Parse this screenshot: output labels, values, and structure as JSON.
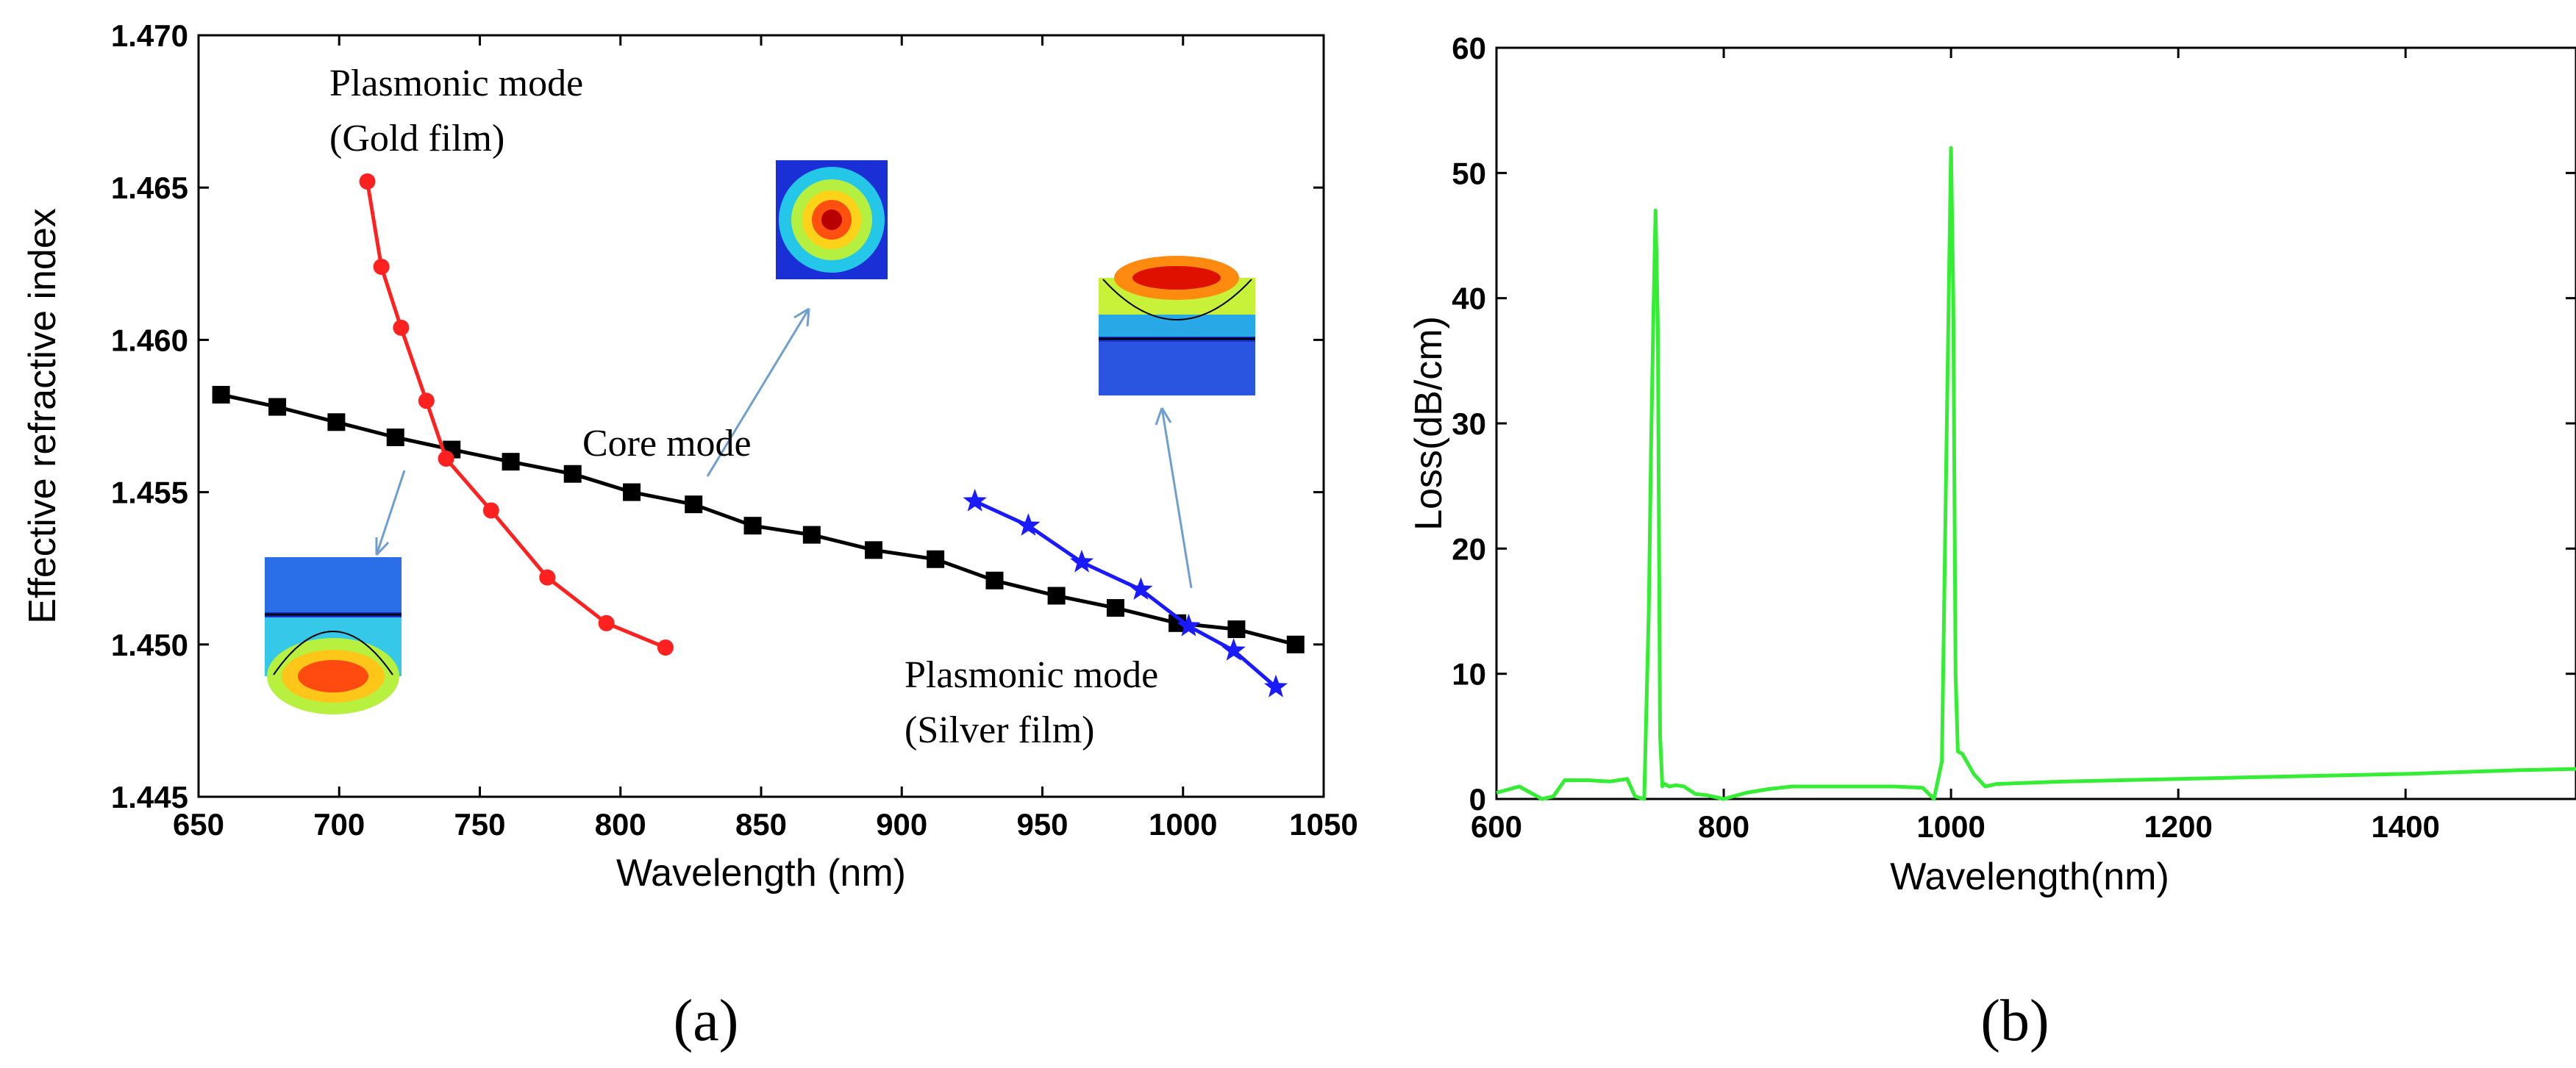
{
  "chart_data": [
    {
      "type": "line",
      "panel_label": "(a)",
      "xlabel": "Wavelength (nm)",
      "ylabel": "Effective refractive index",
      "xlim": [
        650,
        1050
      ],
      "ylim": [
        1.445,
        1.47
      ],
      "xticks": [
        "650",
        "700",
        "750",
        "800",
        "850",
        "900",
        "950",
        "1000",
        "1050"
      ],
      "yticks": [
        "1.445",
        "1.450",
        "1.455",
        "1.460",
        "1.465",
        "1.470"
      ],
      "grid": false,
      "series": [
        {
          "name": "Core mode",
          "color": "#000000",
          "marker": "square",
          "x": [
            658,
            678,
            699,
            720,
            740,
            761,
            783,
            804,
            826,
            847,
            868,
            890,
            912,
            933,
            955,
            976,
            998,
            1019,
            1040
          ],
          "y": [
            1.4582,
            1.4578,
            1.4573,
            1.4568,
            1.4564,
            1.456,
            1.4556,
            1.455,
            1.4546,
            1.4539,
            1.4536,
            1.4531,
            1.4528,
            1.4521,
            1.4516,
            1.4512,
            1.4507,
            1.4505,
            1.45
          ]
        },
        {
          "name": "Plasmonic mode (Gold film)",
          "color": "#ff2020",
          "marker": "circle",
          "x": [
            710,
            715,
            722,
            731,
            738,
            754,
            774,
            795,
            816
          ],
          "y": [
            1.4652,
            1.4624,
            1.4604,
            1.458,
            1.4561,
            1.4544,
            1.4522,
            1.4507,
            1.4499
          ]
        },
        {
          "name": "Plasmonic mode (Silver film)",
          "color": "#1a1aff",
          "marker": "star",
          "x": [
            926,
            945,
            964,
            985,
            1002,
            1018,
            1033
          ],
          "y": [
            1.4547,
            1.4539,
            1.4527,
            1.4518,
            1.4506,
            1.4498,
            1.4486
          ]
        }
      ],
      "annotations": [
        {
          "id": "gold_label",
          "lines": [
            "Plasmonic mode",
            "(Gold film)"
          ]
        },
        {
          "id": "core_label",
          "lines": [
            "Core mode"
          ]
        },
        {
          "id": "silver_label",
          "lines": [
            "Plasmonic mode",
            "(Silver film)"
          ]
        }
      ]
    },
    {
      "type": "line",
      "panel_label": "(b)",
      "xlabel": "Wavelength(nm)",
      "ylabel": "Loss(dB/cm)",
      "xlim": [
        600,
        1550
      ],
      "ylim": [
        0,
        60
      ],
      "xticks": [
        "600",
        "800",
        "1000",
        "1200",
        "1400"
      ],
      "yticks": [
        "0",
        "10",
        "20",
        "30",
        "40",
        "50",
        "60"
      ],
      "grid": false,
      "series": [
        {
          "name": "Loss",
          "color": "#33ee33",
          "x": [
            600,
            620,
            640,
            650,
            660,
            680,
            700,
            715,
            722,
            730,
            734,
            736,
            738,
            740,
            742,
            744,
            746,
            748,
            752,
            758,
            765,
            775,
            785,
            800,
            820,
            840,
            860,
            900,
            950,
            975,
            985,
            992,
            996,
            998,
            1000,
            1002,
            1004,
            1006,
            1010,
            1020,
            1030,
            1040,
            1100,
            1200,
            1300,
            1400,
            1500,
            1550
          ],
          "y": [
            0.5,
            1.0,
            0.0,
            0.2,
            1.5,
            1.5,
            1.4,
            1.6,
            0.2,
            0.0,
            15,
            28,
            38,
            47,
            38,
            5,
            1.0,
            1.2,
            1.0,
            1.1,
            1.0,
            0.4,
            0.3,
            0.0,
            0.5,
            0.8,
            1.0,
            1.0,
            1.0,
            0.9,
            0.0,
            3.0,
            28,
            40,
            52,
            40,
            10,
            3.8,
            3.6,
            2.0,
            1.0,
            1.2,
            1.4,
            1.6,
            1.8,
            2.0,
            2.3,
            2.4
          ]
        }
      ]
    }
  ]
}
